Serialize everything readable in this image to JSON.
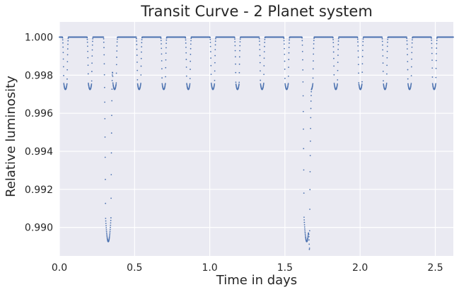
{
  "chart_data": {
    "type": "scatter",
    "title": "Transit Curve - 2 Planet system",
    "xlabel": "Time in days",
    "ylabel": "Relative luminosity",
    "xlim": [
      0,
      2.62
    ],
    "ylim": [
      0.9885,
      1.0008
    ],
    "x_ticks": [
      "0.0",
      "0.5",
      "1.0",
      "1.5",
      "2.0",
      "2.5"
    ],
    "y_ticks": [
      "0.990",
      "0.992",
      "0.994",
      "0.996",
      "0.998",
      "1.000"
    ],
    "grid": true,
    "marker_color": "#4c72b0",
    "background_color": "#eaeaf2",
    "baseline": 1.0,
    "series": [
      {
        "period_days": 0.1635,
        "transit_centers": [
          0.04,
          0.2035,
          0.367,
          0.5305,
          0.694,
          0.8575,
          1.021,
          1.1845,
          1.348,
          1.5115,
          1.675,
          1.8385,
          2.002,
          2.1655,
          2.329,
          2.4925
        ],
        "transit_minimum": 0.99725,
        "transit_total_duration_days": 0.04,
        "transit_flat_duration_days": 0.022
      },
      {
        "period_days": 1.32,
        "transit_centers": [
          0.325,
          1.645
        ],
        "transit_minimum": 0.98925,
        "transit_total_duration_days": 0.064,
        "transit_flat_duration_days": 0.036
      }
    ]
  }
}
